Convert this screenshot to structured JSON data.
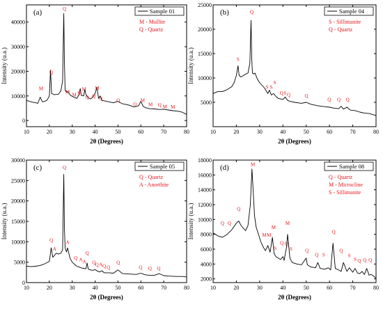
{
  "chart_data": [
    {
      "type": "line",
      "panel_label": "(a)",
      "legend_entry": "Sample 01",
      "annotation_lines": [
        "M - Mullite",
        "Q - Quartz"
      ],
      "xlabel": "2θ (Degrees)",
      "ylabel": "Intensity (u.a.)",
      "xlim": [
        10,
        80
      ],
      "ylim": [
        -2500,
        47000
      ],
      "x_ticks": [
        10,
        20,
        30,
        40,
        50,
        60,
        70,
        80
      ],
      "y_ticks": [
        0,
        10000,
        20000,
        30000,
        40000
      ],
      "x": [
        10,
        12,
        14,
        15,
        16,
        17,
        18,
        19,
        20,
        20.5,
        21,
        21.5,
        22,
        23,
        24,
        25,
        25.8,
        26.3,
        26.6,
        26.9,
        27.4,
        28,
        29,
        30,
        31,
        32,
        33,
        33.5,
        34,
        35,
        35.5,
        36,
        37,
        38,
        39,
        40,
        40.8,
        41.5,
        42.2,
        43,
        45,
        48,
        50,
        52,
        55,
        57,
        59,
        60,
        61,
        62,
        64,
        66,
        68,
        70,
        72,
        74,
        76,
        78,
        80
      ],
      "values": [
        8200,
        7600,
        7200,
        7000,
        9500,
        7600,
        7800,
        8300,
        10000,
        20500,
        11000,
        10800,
        10500,
        10600,
        10700,
        12000,
        16000,
        43500,
        24000,
        12500,
        11500,
        11800,
        10500,
        9800,
        9400,
        9000,
        10500,
        13000,
        10200,
        10000,
        12500,
        10600,
        9200,
        8800,
        9500,
        11000,
        13500,
        9000,
        10000,
        8200,
        7800,
        7200,
        7800,
        6800,
        6200,
        5500,
        6000,
        7800,
        5800,
        5200,
        4800,
        4700,
        4500,
        4600,
        4300,
        4000,
        3800,
        3400,
        2500
      ],
      "peak_labels": [
        {
          "x": 16.4,
          "y": 12300,
          "text": "M"
        },
        {
          "x": 20.8,
          "y": 19000,
          "text": "Q"
        },
        {
          "x": 26.6,
          "y": 44800,
          "text": "Q"
        },
        {
          "x": 28.0,
          "y": 11000,
          "text": "M"
        },
        {
          "x": 30.9,
          "y": 9800,
          "text": "M"
        },
        {
          "x": 33.2,
          "y": 10300,
          "text": "M"
        },
        {
          "x": 35.2,
          "y": 12000,
          "text": "M"
        },
        {
          "x": 36.5,
          "y": 8800,
          "text": "Q"
        },
        {
          "x": 39.4,
          "y": 9200,
          "text": "Q"
        },
        {
          "x": 40.9,
          "y": 12500,
          "text": "M"
        },
        {
          "x": 42.5,
          "y": 8300,
          "text": "Q"
        },
        {
          "x": 50.1,
          "y": 7600,
          "text": "Q"
        },
        {
          "x": 55,
          "y": 0,
          "text": ""
        },
        {
          "x": 57.4,
          "y": 6000,
          "text": "Q"
        },
        {
          "x": 60.8,
          "y": 7500,
          "text": "M"
        },
        {
          "x": 64.2,
          "y": 5800,
          "text": "M"
        },
        {
          "x": 68.2,
          "y": 5700,
          "text": "Q"
        },
        {
          "x": 70.5,
          "y": 5000,
          "text": "M"
        },
        {
          "x": 74.0,
          "y": 4800,
          "text": "M"
        }
      ]
    },
    {
      "type": "line",
      "panel_label": "(b)",
      "legend_entry": "Sample 04",
      "annotation_lines": [
        "S - Sillimanite",
        "Q - Quartz"
      ],
      "xlabel": "2θ (Degrees)",
      "ylabel": "Intensity (u.a.)",
      "xlim": [
        10,
        80
      ],
      "ylim": [
        0,
        25000
      ],
      "x_ticks": [
        10,
        20,
        30,
        40,
        50,
        60,
        70,
        80
      ],
      "y_ticks": [
        5000,
        10000,
        15000,
        20000,
        25000
      ],
      "x": [
        10,
        12,
        14,
        16,
        18,
        19,
        20,
        20.7,
        21.2,
        22,
        23,
        24,
        25,
        25.8,
        26.3,
        26.6,
        26.9,
        27.5,
        28,
        29,
        30,
        32,
        33.5,
        34.2,
        35,
        36,
        37,
        38,
        39,
        40,
        41,
        42,
        43,
        45,
        48,
        50,
        52,
        55,
        58,
        60,
        62,
        64,
        65,
        66,
        67.5,
        69,
        71,
        73,
        75,
        77,
        80
      ],
      "values": [
        6800,
        7200,
        7200,
        7600,
        8200,
        9000,
        10500,
        12500,
        10500,
        10200,
        10500,
        10800,
        11000,
        13000,
        21800,
        14000,
        11000,
        10800,
        11000,
        9800,
        9000,
        8000,
        6800,
        7500,
        6500,
        6800,
        6200,
        5800,
        5700,
        5600,
        6100,
        5400,
        5200,
        5000,
        4800,
        5000,
        4600,
        4300,
        4100,
        4000,
        3800,
        3700,
        4200,
        3600,
        4000,
        3400,
        3300,
        3000,
        2800,
        2700,
        2300
      ],
      "peak_labels": [
        {
          "x": 20.7,
          "y": 13500,
          "text": "S"
        },
        {
          "x": 26.6,
          "y": 23200,
          "text": "Q"
        },
        {
          "x": 33.2,
          "y": 7800,
          "text": "S"
        },
        {
          "x": 35.0,
          "y": 7800,
          "text": "S"
        },
        {
          "x": 36.5,
          "y": 8700,
          "text": "S"
        },
        {
          "x": 39.4,
          "y": 6600,
          "text": "Q"
        },
        {
          "x": 40.9,
          "y": 6600,
          "text": "S"
        },
        {
          "x": 42.5,
          "y": 6200,
          "text": "Q"
        },
        {
          "x": 50.1,
          "y": 6000,
          "text": "Q"
        },
        {
          "x": 59.9,
          "y": 5200,
          "text": "Q"
        },
        {
          "x": 64.0,
          "y": 5200,
          "text": "Q"
        },
        {
          "x": 67.8,
          "y": 5200,
          "text": "Q"
        }
      ]
    },
    {
      "type": "line",
      "panel_label": "(c)",
      "legend_entry": "Sample 05",
      "annotation_lines": [
        "Q - Quartz",
        "A - Anorthite"
      ],
      "xlabel": "2θ (Degrees)",
      "ylabel": "Intensity (u.a.)",
      "xlim": [
        10,
        80
      ],
      "ylim": [
        0,
        30000
      ],
      "x_ticks": [
        10,
        20,
        30,
        40,
        50,
        60,
        70,
        80
      ],
      "y_ticks": [
        0,
        5000,
        10000,
        15000,
        20000,
        25000,
        30000
      ],
      "x": [
        10,
        12,
        14,
        16,
        18,
        20,
        20.8,
        21.5,
        22,
        23,
        24,
        25,
        25.8,
        26.3,
        26.6,
        26.9,
        27.5,
        28,
        29,
        30,
        31,
        32,
        33,
        34,
        35,
        36,
        36.5,
        37,
        38,
        39,
        40,
        41,
        42,
        43,
        44,
        46,
        48,
        50,
        52,
        55,
        58,
        60,
        62,
        64,
        66,
        68,
        70,
        72,
        75,
        78,
        80
      ],
      "values": [
        4000,
        3900,
        4000,
        4200,
        4600,
        5200,
        8500,
        6200,
        6500,
        7200,
        7000,
        7200,
        8000,
        26500,
        13500,
        8500,
        7500,
        8500,
        6000,
        5000,
        4500,
        4000,
        3800,
        3600,
        3500,
        3400,
        4800,
        3300,
        3100,
        3000,
        3200,
        2800,
        2600,
        2900,
        2400,
        2400,
        2300,
        3100,
        2200,
        2100,
        2000,
        2300,
        1900,
        1800,
        1800,
        2200,
        1700,
        1600,
        1500,
        1500,
        1400
      ],
      "peak_labels": [
        {
          "x": 20.8,
          "y": 10000,
          "text": "Q"
        },
        {
          "x": 22.3,
          "y": 7800,
          "text": "A"
        },
        {
          "x": 26.6,
          "y": 27800,
          "text": "Q"
        },
        {
          "x": 28.0,
          "y": 9500,
          "text": "A"
        },
        {
          "x": 31.5,
          "y": 5600,
          "text": "Q"
        },
        {
          "x": 33.8,
          "y": 5200,
          "text": "A"
        },
        {
          "x": 35.3,
          "y": 4700,
          "text": "A"
        },
        {
          "x": 36.5,
          "y": 6800,
          "text": "Q"
        },
        {
          "x": 39.5,
          "y": 4500,
          "text": "Q"
        },
        {
          "x": 40.8,
          "y": 4000,
          "text": "Q"
        },
        {
          "x": 42.5,
          "y": 4000,
          "text": "A"
        },
        {
          "x": 44.0,
          "y": 3700,
          "text": "Q"
        },
        {
          "x": 45.8,
          "y": 3300,
          "text": "Q"
        },
        {
          "x": 50.1,
          "y": 4500,
          "text": "Q"
        },
        {
          "x": 59.9,
          "y": 3300,
          "text": "Q"
        },
        {
          "x": 64.0,
          "y": 3100,
          "text": "Q"
        },
        {
          "x": 67.8,
          "y": 3100,
          "text": "Q"
        }
      ]
    },
    {
      "type": "line",
      "panel_label": "(d)",
      "legend_entry": "Sample 08",
      "annotation_lines": [
        "Q - Quartz",
        "M - Microcline",
        "S - Sillimanite"
      ],
      "xlabel": "2θ (Degrees)",
      "ylabel": "Intensity (u.a.)",
      "xlim": [
        10,
        80
      ],
      "ylim": [
        1500,
        18000
      ],
      "x_ticks": [
        10,
        20,
        30,
        40,
        50,
        60,
        70,
        80
      ],
      "y_ticks": [
        2000,
        4000,
        6000,
        8000,
        10000,
        12000,
        14000,
        16000,
        18000
      ],
      "x": [
        10,
        12,
        14,
        16,
        18,
        20,
        21,
        22,
        23,
        24,
        25,
        26,
        26.7,
        27.2,
        27.8,
        28.5,
        29.5,
        30.5,
        31.5,
        32.5,
        33.5,
        34.5,
        35.5,
        36.2,
        37,
        38,
        39,
        40,
        40.5,
        41.5,
        42,
        43,
        44,
        46,
        48,
        50,
        50.5,
        52,
        54,
        55,
        56,
        58,
        59.5,
        60.5,
        61.5,
        62.5,
        64,
        65,
        66,
        67.5,
        68.5,
        70,
        71,
        72,
        73,
        74,
        75,
        76,
        77,
        78,
        80
      ],
      "values": [
        8200,
        7800,
        7600,
        8000,
        8600,
        9500,
        9800,
        9200,
        8800,
        8500,
        9200,
        12000,
        16800,
        14000,
        10500,
        9000,
        8000,
        7000,
        6300,
        5800,
        6500,
        5600,
        7600,
        5400,
        5000,
        4800,
        4600,
        5000,
        4500,
        6200,
        8000,
        4800,
        4200,
        4000,
        3900,
        4800,
        3900,
        3600,
        3500,
        4200,
        3400,
        3300,
        3500,
        3200,
        6800,
        3400,
        3200,
        3000,
        4200,
        3000,
        3500,
        2900,
        3400,
        2800,
        2700,
        3000,
        2600,
        3400,
        2500,
        2600,
        2100
      ],
      "peak_labels": [
        {
          "x": 14.0,
          "y": 9300,
          "text": "Q"
        },
        {
          "x": 17.0,
          "y": 9300,
          "text": "Q"
        },
        {
          "x": 21.0,
          "y": 11200,
          "text": "Q"
        },
        {
          "x": 27.1,
          "y": 17200,
          "text": "M"
        },
        {
          "x": 32.0,
          "y": 7700,
          "text": "M"
        },
        {
          "x": 34.0,
          "y": 7700,
          "text": "M"
        },
        {
          "x": 36.0,
          "y": 8700,
          "text": "M"
        },
        {
          "x": 36.7,
          "y": 5900,
          "text": "S"
        },
        {
          "x": 39.5,
          "y": 6600,
          "text": "Q"
        },
        {
          "x": 41.5,
          "y": 6500,
          "text": "Q"
        },
        {
          "x": 42.0,
          "y": 9300,
          "text": "M"
        },
        {
          "x": 43.5,
          "y": 5800,
          "text": "S"
        },
        {
          "x": 50.3,
          "y": 5600,
          "text": "Q"
        },
        {
          "x": 54.5,
          "y": 5000,
          "text": "Q"
        },
        {
          "x": 57.5,
          "y": 5000,
          "text": "S"
        },
        {
          "x": 61.8,
          "y": 8100,
          "text": "Q"
        },
        {
          "x": 65.0,
          "y": 5600,
          "text": "Q"
        },
        {
          "x": 68.5,
          "y": 4900,
          "text": "S"
        },
        {
          "x": 71.0,
          "y": 4400,
          "text": "S"
        },
        {
          "x": 72.8,
          "y": 4200,
          "text": "Q"
        },
        {
          "x": 75.2,
          "y": 4300,
          "text": "Q"
        },
        {
          "x": 77.5,
          "y": 4300,
          "text": "Q"
        }
      ]
    }
  ]
}
